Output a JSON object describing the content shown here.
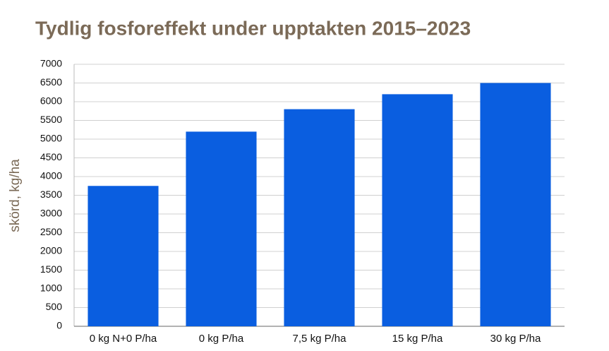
{
  "chart_data": {
    "type": "bar",
    "title": "Tydlig fosforeffekt under upptakten 2015–2023",
    "y_label": "skörd, kg/ha",
    "categories": [
      "0 kg N+0 P/ha",
      "0 kg P/ha",
      "7,5 kg P/ha",
      "15 kg P/ha",
      "30 kg P/ha"
    ],
    "values": [
      3750,
      5200,
      5800,
      6200,
      6500
    ],
    "color": "#0a5ee0",
    "ylim": [
      0,
      7000
    ],
    "yticks": [
      0,
      500,
      1000,
      1500,
      2000,
      2500,
      3000,
      3500,
      4000,
      4500,
      5000,
      5500,
      6000,
      6500,
      7000
    ],
    "grid": true
  }
}
